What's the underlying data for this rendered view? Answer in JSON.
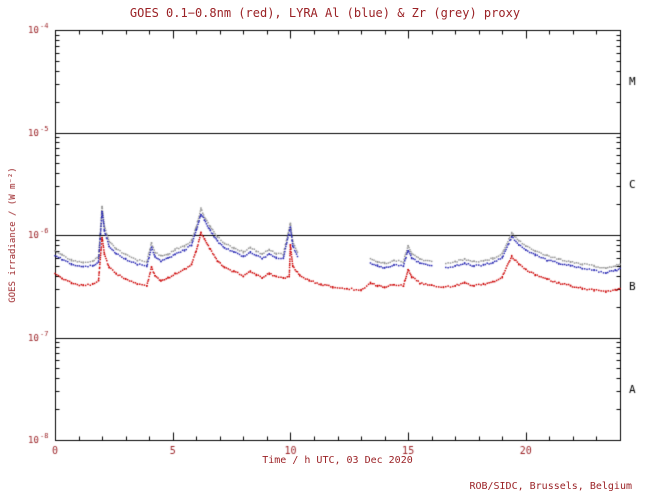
{
  "title": "GOES 0.1−0.8nm (red), LYRA Al (blue) & Zr (grey) proxy",
  "credit": "ROB/SIDC, Brussels, Belgium",
  "chart_data": {
    "type": "scatter",
    "title": "GOES 0.1−0.8nm (red), LYRA Al (blue) & Zr (grey) proxy",
    "xlabel": "Time / h UTC, 03 Dec 2020",
    "ylabel": "GOES irradiance / (W m⁻²)",
    "xlim": [
      0,
      24
    ],
    "ylim_log10": [
      -8,
      -4
    ],
    "x_major_ticks": [
      0,
      5,
      10,
      15,
      20
    ],
    "x_minor_step": 1,
    "y_decades": [
      -4,
      -5,
      -6,
      -7,
      -8
    ],
    "hlines": [
      1e-05,
      1e-06,
      1e-07
    ],
    "grid": "off",
    "legend": "in-title",
    "class_labels": [
      {
        "label": "M",
        "log_center": -4.5
      },
      {
        "label": "C",
        "log_center": -5.5
      },
      {
        "label": "B",
        "log_center": -6.5
      },
      {
        "label": "A",
        "log_center": -7.5
      }
    ],
    "colors": {
      "red": "#cc0000",
      "blue": "#2727b2",
      "grey": "#949494",
      "axis": "#000000",
      "text": "#9b2226",
      "class_text": "#000000"
    },
    "series": [
      {
        "name": "LYRA Zr proxy",
        "color_key": "grey",
        "segments": [
          [
            [
              0,
              6.9e-07
            ],
            [
              0.3,
              6.4e-07
            ],
            [
              0.7,
              5.7e-07
            ],
            [
              1.2,
              5.4e-07
            ],
            [
              1.6,
              5.5e-07
            ],
            [
              1.85,
              6.1e-07
            ],
            [
              2.0,
              1.9e-06
            ],
            [
              2.1,
              1.2e-06
            ],
            [
              2.3,
              8.6e-07
            ],
            [
              2.6,
              7.3e-07
            ],
            [
              3.0,
              6.4e-07
            ],
            [
              3.5,
              5.7e-07
            ],
            [
              3.9,
              5.5e-07
            ],
            [
              4.1,
              8.3e-07
            ],
            [
              4.25,
              6.8e-07
            ],
            [
              4.5,
              6.2e-07
            ],
            [
              4.8,
              6.5e-07
            ],
            [
              5.1,
              7.2e-07
            ],
            [
              5.5,
              7.8e-07
            ],
            [
              5.8,
              8.8e-07
            ],
            [
              6.0,
              1.2e-06
            ],
            [
              6.2,
              1.8e-06
            ],
            [
              6.35,
              1.5e-06
            ],
            [
              6.6,
              1.2e-06
            ],
            [
              6.9,
              9.6e-07
            ],
            [
              7.2,
              8.3e-07
            ],
            [
              7.6,
              7.5e-07
            ],
            [
              8.0,
              6.8e-07
            ],
            [
              8.3,
              7.5e-07
            ],
            [
              8.55,
              7e-07
            ],
            [
              8.8,
              6.5e-07
            ],
            [
              9.1,
              7.2e-07
            ],
            [
              9.4,
              6.6e-07
            ],
            [
              9.7,
              6.5e-07
            ],
            [
              10.0,
              1.3e-06
            ],
            [
              10.1,
              8.6e-07
            ],
            [
              10.3,
              6.8e-07
            ]
          ],
          [
            [
              13.4,
              5.8e-07
            ],
            [
              13.7,
              5.5e-07
            ],
            [
              14.0,
              5.3e-07
            ],
            [
              14.4,
              5.6e-07
            ],
            [
              14.8,
              5.5e-07
            ],
            [
              15.0,
              7.8e-07
            ],
            [
              15.15,
              6.6e-07
            ],
            [
              15.5,
              5.8e-07
            ],
            [
              16.0,
              5.5e-07
            ]
          ],
          [
            [
              16.6,
              5.3e-07
            ],
            [
              17.0,
              5.5e-07
            ],
            [
              17.4,
              5.8e-07
            ],
            [
              17.8,
              5.5e-07
            ],
            [
              18.2,
              5.6e-07
            ],
            [
              18.6,
              5.9e-07
            ],
            [
              19.0,
              6.6e-07
            ],
            [
              19.4,
              1.05e-06
            ],
            [
              19.7,
              8.9e-07
            ],
            [
              20.0,
              7.8e-07
            ],
            [
              20.4,
              7e-07
            ],
            [
              20.9,
              6.3e-07
            ],
            [
              21.4,
              5.8e-07
            ],
            [
              21.9,
              5.5e-07
            ],
            [
              22.4,
              5.2e-07
            ],
            [
              22.9,
              5e-07
            ],
            [
              23.4,
              4.7e-07
            ],
            [
              23.8,
              5e-07
            ],
            [
              24,
              5.2e-07
            ]
          ]
        ]
      },
      {
        "name": "LYRA Al proxy",
        "color_key": "blue",
        "segments": [
          [
            [
              0,
              6.3e-07
            ],
            [
              0.3,
              5.8e-07
            ],
            [
              0.7,
              5.2e-07
            ],
            [
              1.2,
              4.9e-07
            ],
            [
              1.6,
              5e-07
            ],
            [
              1.85,
              5.5e-07
            ],
            [
              2.0,
              1.7e-06
            ],
            [
              2.1,
              1.1e-06
            ],
            [
              2.3,
              7.8e-07
            ],
            [
              2.6,
              6.6e-07
            ],
            [
              3.0,
              5.8e-07
            ],
            [
              3.5,
              5.2e-07
            ],
            [
              3.9,
              5e-07
            ],
            [
              4.1,
              7.5e-07
            ],
            [
              4.25,
              6.2e-07
            ],
            [
              4.5,
              5.6e-07
            ],
            [
              4.8,
              5.9e-07
            ],
            [
              5.1,
              6.5e-07
            ],
            [
              5.5,
              7.1e-07
            ],
            [
              5.8,
              8e-07
            ],
            [
              6.0,
              1.1e-06
            ],
            [
              6.2,
              1.6e-06
            ],
            [
              6.35,
              1.4e-06
            ],
            [
              6.6,
              1.1e-06
            ],
            [
              6.9,
              8.7e-07
            ],
            [
              7.2,
              7.5e-07
            ],
            [
              7.6,
              6.8e-07
            ],
            [
              8.0,
              6.2e-07
            ],
            [
              8.3,
              6.8e-07
            ],
            [
              8.55,
              6.4e-07
            ],
            [
              8.8,
              5.9e-07
            ],
            [
              9.1,
              6.5e-07
            ],
            [
              9.4,
              6e-07
            ],
            [
              9.7,
              5.9e-07
            ],
            [
              10.0,
              1.2e-06
            ],
            [
              10.1,
              7.8e-07
            ],
            [
              10.3,
              6.2e-07
            ]
          ],
          [
            [
              13.4,
              5.3e-07
            ],
            [
              13.7,
              5e-07
            ],
            [
              14.0,
              4.8e-07
            ],
            [
              14.4,
              5.1e-07
            ],
            [
              14.8,
              5e-07
            ],
            [
              15.0,
              7.1e-07
            ],
            [
              15.15,
              6e-07
            ],
            [
              15.5,
              5.3e-07
            ],
            [
              16.0,
              5e-07
            ]
          ],
          [
            [
              16.6,
              4.8e-07
            ],
            [
              17.0,
              5e-07
            ],
            [
              17.4,
              5.3e-07
            ],
            [
              17.8,
              5e-07
            ],
            [
              18.2,
              5.1e-07
            ],
            [
              18.6,
              5.4e-07
            ],
            [
              19.0,
              6e-07
            ],
            [
              19.4,
              9.6e-07
            ],
            [
              19.7,
              8.1e-07
            ],
            [
              20.0,
              7.1e-07
            ],
            [
              20.4,
              6.4e-07
            ],
            [
              20.9,
              5.7e-07
            ],
            [
              21.4,
              5.3e-07
            ],
            [
              21.9,
              5e-07
            ],
            [
              22.4,
              4.7e-07
            ],
            [
              22.9,
              4.5e-07
            ],
            [
              23.4,
              4.3e-07
            ],
            [
              23.8,
              4.5e-07
            ],
            [
              24,
              4.7e-07
            ]
          ]
        ]
      },
      {
        "name": "GOES 0.1-0.8nm",
        "color_key": "red",
        "segments": [
          [
            [
              0,
              4.2e-07
            ],
            [
              0.3,
              3.8e-07
            ],
            [
              0.7,
              3.4e-07
            ],
            [
              1.2,
              3.2e-07
            ],
            [
              1.6,
              3.3e-07
            ],
            [
              1.85,
              3.6e-07
            ],
            [
              2.0,
              9.5e-07
            ],
            [
              2.1,
              6.5e-07
            ],
            [
              2.3,
              4.8e-07
            ],
            [
              2.6,
              4.2e-07
            ],
            [
              3.0,
              3.7e-07
            ],
            [
              3.5,
              3.3e-07
            ],
            [
              3.9,
              3.2e-07
            ],
            [
              4.1,
              4.8e-07
            ],
            [
              4.25,
              4e-07
            ],
            [
              4.5,
              3.6e-07
            ],
            [
              4.8,
              3.8e-07
            ],
            [
              5.1,
              4.2e-07
            ],
            [
              5.5,
              4.6e-07
            ],
            [
              5.8,
              5.2e-07
            ],
            [
              6.0,
              7e-07
            ],
            [
              6.2,
              1.05e-06
            ],
            [
              6.35,
              9.2e-07
            ],
            [
              6.6,
              7.2e-07
            ],
            [
              6.9,
              5.6e-07
            ],
            [
              7.2,
              4.8e-07
            ],
            [
              7.6,
              4.4e-07
            ],
            [
              8.0,
              4e-07
            ],
            [
              8.3,
              4.4e-07
            ],
            [
              8.55,
              4.1e-07
            ],
            [
              8.8,
              3.8e-07
            ],
            [
              9.1,
              4.2e-07
            ],
            [
              9.4,
              3.9e-07
            ],
            [
              9.7,
              3.8e-07
            ],
            [
              9.95,
              3.9e-07
            ],
            [
              10.0,
              8e-07
            ],
            [
              10.1,
              5e-07
            ],
            [
              10.4,
              4e-07
            ],
            [
              10.8,
              3.6e-07
            ],
            [
              11.3,
              3.3e-07
            ],
            [
              11.8,
              3.1e-07
            ],
            [
              12.4,
              3e-07
            ],
            [
              13.0,
              2.9e-07
            ],
            [
              13.4,
              3.4e-07
            ],
            [
              13.7,
              3.2e-07
            ],
            [
              14.0,
              3.1e-07
            ],
            [
              14.4,
              3.3e-07
            ],
            [
              14.8,
              3.2e-07
            ],
            [
              15.0,
              4.6e-07
            ],
            [
              15.15,
              3.9e-07
            ],
            [
              15.5,
              3.4e-07
            ],
            [
              16.0,
              3.2e-07
            ],
            [
              16.5,
              3.1e-07
            ],
            [
              17.0,
              3.2e-07
            ],
            [
              17.4,
              3.4e-07
            ],
            [
              17.8,
              3.2e-07
            ],
            [
              18.2,
              3.3e-07
            ],
            [
              18.6,
              3.5e-07
            ],
            [
              19.0,
              3.9e-07
            ],
            [
              19.4,
              6.2e-07
            ],
            [
              19.7,
              5.2e-07
            ],
            [
              20.0,
              4.6e-07
            ],
            [
              20.4,
              4.1e-07
            ],
            [
              20.9,
              3.7e-07
            ],
            [
              21.4,
              3.4e-07
            ],
            [
              21.9,
              3.2e-07
            ],
            [
              22.4,
              3e-07
            ],
            [
              22.9,
              2.9e-07
            ],
            [
              23.4,
              2.8e-07
            ],
            [
              23.8,
              2.9e-07
            ],
            [
              24,
              3e-07
            ]
          ]
        ]
      }
    ]
  }
}
